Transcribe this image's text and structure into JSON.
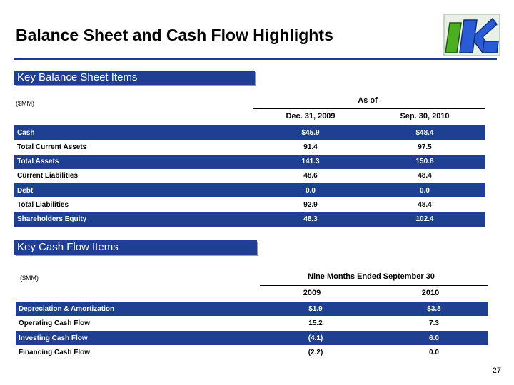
{
  "title": "Balance Sheet and Cash Flow Highlights",
  "logo_text": "UK",
  "balance": {
    "section_label": "Key Balance Sheet Items",
    "units": "($MM)",
    "as_of": "As of",
    "col1": "Dec. 31, 2009",
    "col2": "Sep. 30, 2010",
    "rows": [
      {
        "label": "Cash",
        "v1": "$45.9",
        "v2": "$48.4"
      },
      {
        "label": "Total Current Assets",
        "v1": "91.4",
        "v2": "97.5"
      },
      {
        "label": "Total Assets",
        "v1": "141.3",
        "v2": "150.8"
      },
      {
        "label": "Current Liabilities",
        "v1": "48.6",
        "v2": "48.4"
      },
      {
        "label": "Debt",
        "v1": "0.0",
        "v2": "0.0"
      },
      {
        "label": "Total Liabilities",
        "v1": "92.9",
        "v2": "48.4"
      },
      {
        "label": "Shareholders Equity",
        "v1": "48.3",
        "v2": "102.4"
      }
    ]
  },
  "cashflow": {
    "section_label": "Key Cash Flow Items",
    "units": "($MM)",
    "period": "Nine Months Ended September 30",
    "col1": "2009",
    "col2": "2010",
    "rows": [
      {
        "label": "Depreciation & Amortization",
        "v1": "$1.9",
        "v2": "$3.8"
      },
      {
        "label": "Operating Cash Flow",
        "v1": "15.2",
        "v2": "7.3"
      },
      {
        "label": "Investing Cash Flow",
        "v1": "(4.1)",
        "v2": "6.0"
      },
      {
        "label": "Financing Cash Flow",
        "v1": "(2.2)",
        "v2": "0.0"
      }
    ]
  },
  "page_number": "27"
}
